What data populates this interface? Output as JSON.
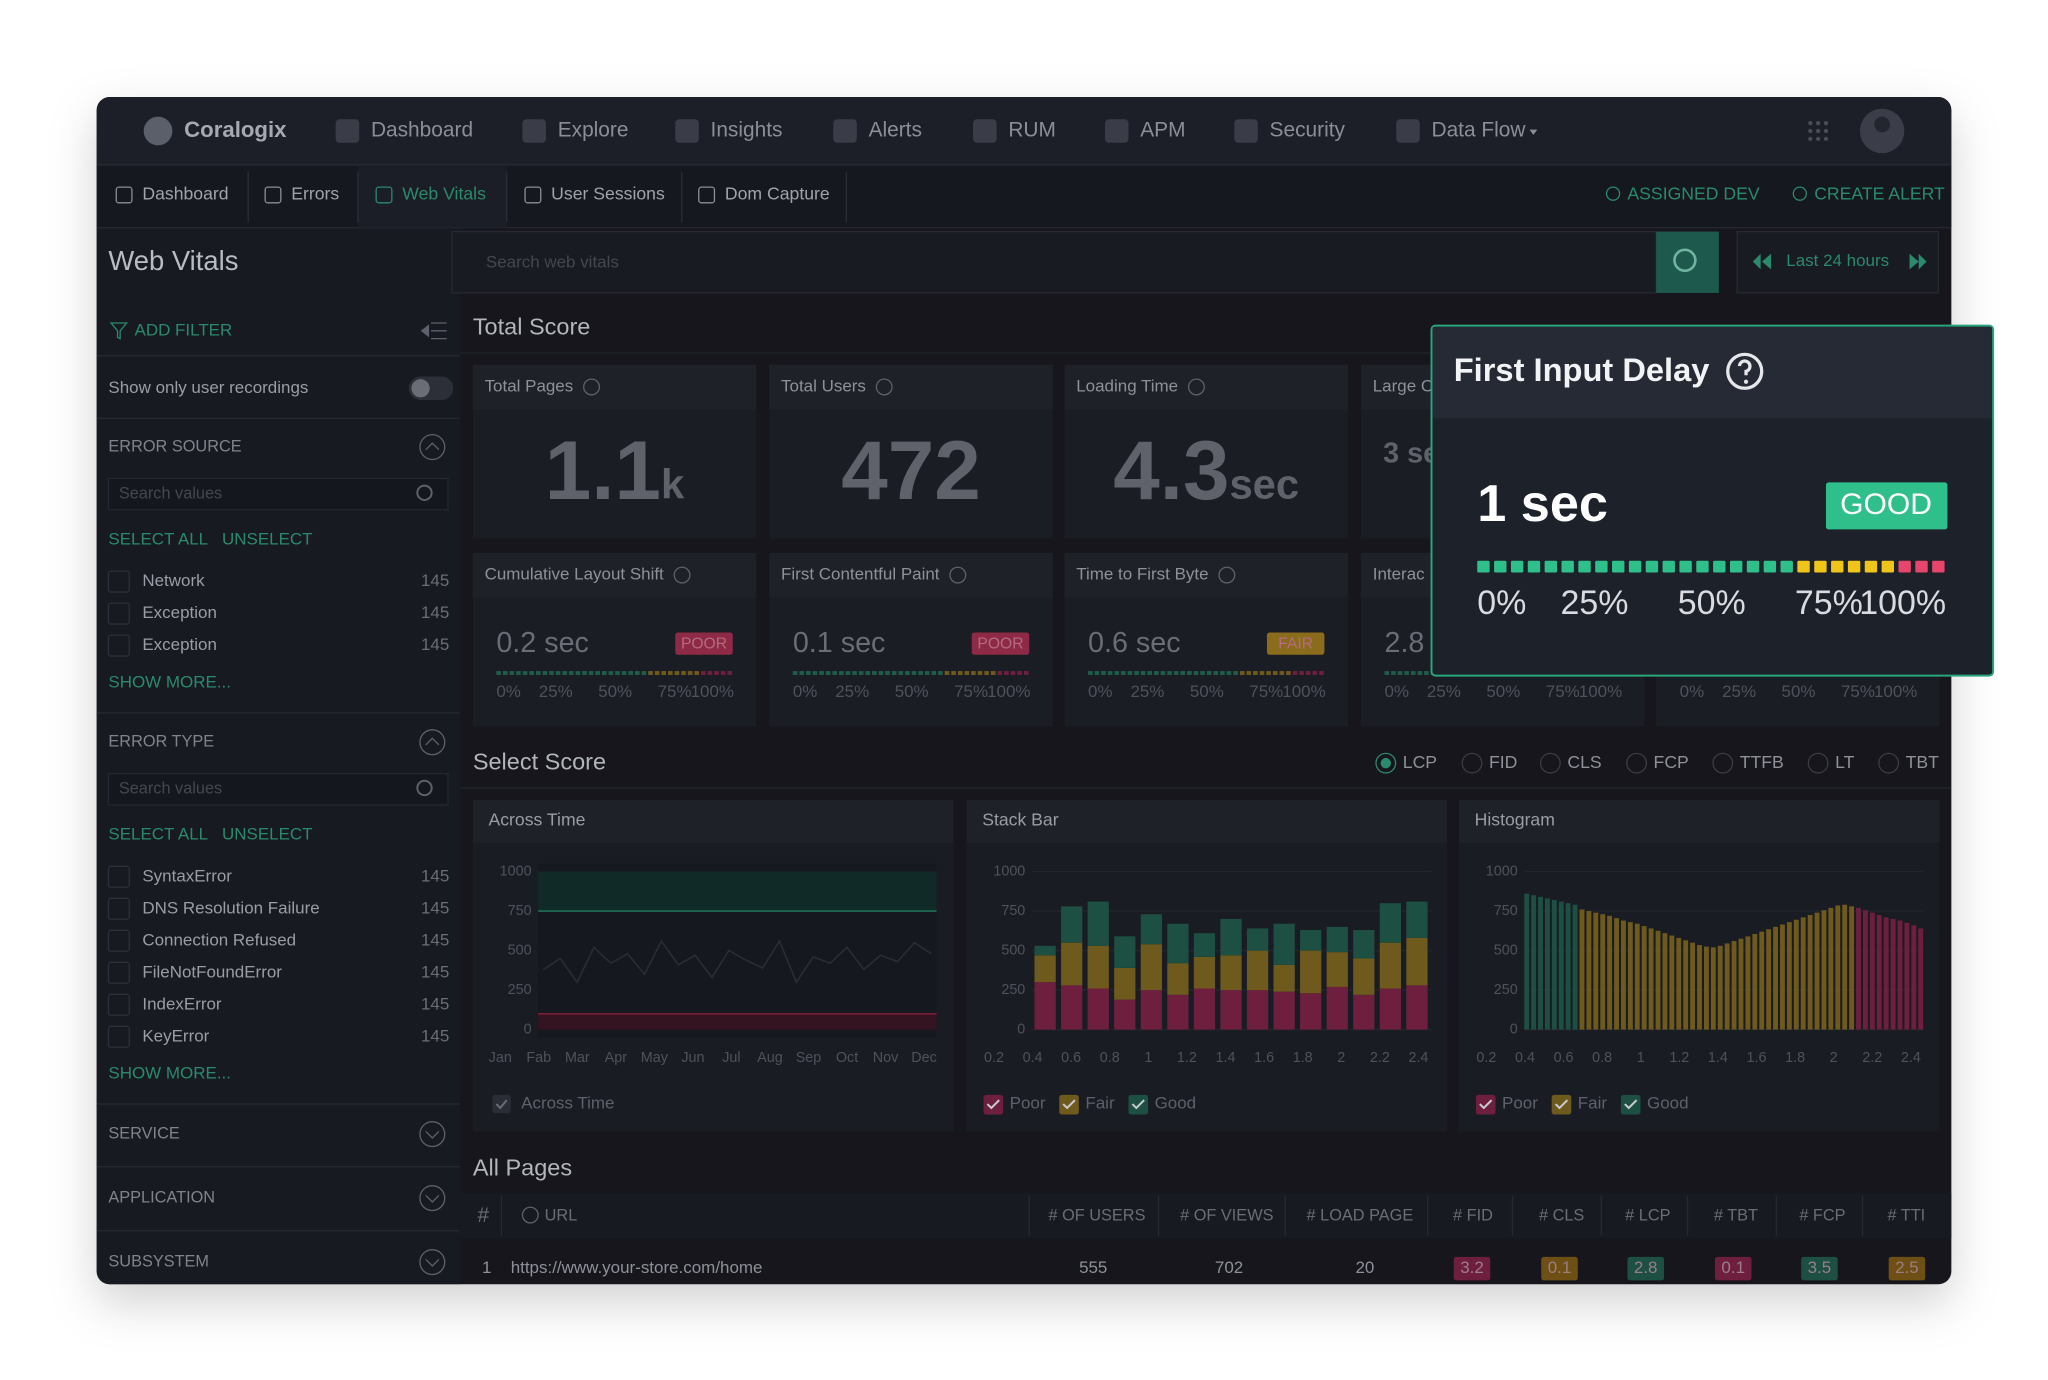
{
  "nav": {
    "brand": "Coralogix",
    "items": [
      "Dashboard",
      "Explore",
      "Insights",
      "Alerts",
      "RUM",
      "APM",
      "Security",
      "Data Flow"
    ]
  },
  "subnav": {
    "tabs": [
      "Dashboard",
      "Errors",
      "Web Vitals",
      "User Sessions",
      "Dom Capture"
    ],
    "active": 2,
    "actions": [
      "ASSIGNED DEV",
      "CREATE ALERT"
    ]
  },
  "page_title": "Web Vitals",
  "search_placeholder": "Search web vitals",
  "time_range": "Last 24 hours",
  "sidebar": {
    "add_filter": "ADD FILTER",
    "recordings_toggle": "Show only user recordings",
    "sections": [
      {
        "title": "ERROR SOURCE",
        "search": "Search values",
        "select_all": "SELECT ALL",
        "unselect": "UNSELECT",
        "items": [
          {
            "label": "Network",
            "count": 145
          },
          {
            "label": "Exception",
            "count": 145
          },
          {
            "label": "Exception",
            "count": 145
          }
        ],
        "show_more": "SHOW MORE..."
      },
      {
        "title": "ERROR TYPE",
        "search": "Search values",
        "select_all": "SELECT ALL",
        "unselect": "UNSELECT",
        "items": [
          {
            "label": "SyntaxError",
            "count": 145
          },
          {
            "label": "DNS Resolution Failure",
            "count": 145
          },
          {
            "label": "Connection Refused",
            "count": 145
          },
          {
            "label": "FileNotFoundError",
            "count": 145
          },
          {
            "label": "IndexError",
            "count": 145
          },
          {
            "label": "KeyError",
            "count": 145
          }
        ],
        "show_more": "SHOW MORE..."
      },
      {
        "title": "SERVICE"
      },
      {
        "title": "APPLICATION"
      },
      {
        "title": "SUBSYSTEM"
      }
    ]
  },
  "total_score": {
    "title": "Total Score",
    "summary_cards": [
      {
        "label": "Total Pages",
        "value": 1.1,
        "unit": "k"
      },
      {
        "label": "Total Users",
        "value": 472
      },
      {
        "label": "Loading Time",
        "value": 4.3,
        "unit": "sec"
      },
      {
        "label": "Large C",
        "value": "3 se"
      }
    ],
    "scale_labels": [
      "0%",
      "25%",
      "50%",
      "75%",
      "100%"
    ],
    "vital_cards": [
      {
        "label": "Cumulative Layout Shift",
        "value": "0.2 sec",
        "status": "POOR",
        "color": "#8e2a45"
      },
      {
        "label": "First Contentful Paint",
        "value": "0.1 sec",
        "status": "POOR",
        "color": "#8e2a45"
      },
      {
        "label": "Time to First Byte",
        "value": "0.6 sec",
        "status": "FAIR",
        "color": "#8a6c1c"
      },
      {
        "label": "Interac",
        "value": 2.8
      }
    ]
  },
  "select_score": {
    "title": "Select Score",
    "options": [
      "LCP",
      "FID",
      "CLS",
      "FCP",
      "TTFB",
      "LT",
      "TBT"
    ],
    "selected": 0
  },
  "charts": {
    "across_time": {
      "type": "line",
      "title": "Across Time",
      "ylim": [
        0,
        1000
      ],
      "yticks": [
        0,
        250,
        500,
        750,
        1000
      ],
      "categories": [
        "Jan",
        "Fab",
        "Mar",
        "Apr",
        "May",
        "Jun",
        "Jul",
        "Aug",
        "Sep",
        "Oct",
        "Nov",
        "Dec"
      ],
      "values": [
        380,
        450,
        300,
        520,
        420,
        480,
        350,
        560,
        410,
        470,
        330,
        500,
        440,
        390,
        560,
        300,
        460,
        420,
        520,
        380,
        470,
        430,
        550,
        480
      ],
      "color": "#2a2d37",
      "bands": [
        {
          "from": 750,
          "to": 1000,
          "color": "#0f2a27",
          "line": "#1f6e55"
        },
        {
          "from": 0,
          "to": 100,
          "color": "#341421",
          "line": "#7a1f3a"
        }
      ],
      "legend": "Across Time"
    },
    "stack_bar": {
      "type": "stacked_bar",
      "title": "Stack Bar",
      "ylim": [
        0,
        1000
      ],
      "yticks": [
        0,
        250,
        500,
        750,
        1000
      ],
      "xlim": [
        0.2,
        2.4
      ],
      "xticks": [
        0.2,
        0.4,
        0.6,
        0.8,
        1,
        1.2,
        1.4,
        1.6,
        1.8,
        2,
        2.2,
        2.4
      ],
      "series": [
        {
          "name": "Poor",
          "color": "#6e1f3e",
          "values": [
            300,
            280,
            260,
            190,
            250,
            220,
            260,
            250,
            250,
            240,
            230,
            270,
            220,
            260,
            280
          ]
        },
        {
          "name": "Fair",
          "color": "#6e5a1c",
          "values": [
            170,
            270,
            270,
            200,
            290,
            200,
            200,
            220,
            250,
            170,
            270,
            220,
            230,
            290,
            300
          ]
        },
        {
          "name": "Good",
          "color": "#1d4f42",
          "values": [
            60,
            230,
            280,
            200,
            190,
            250,
            150,
            230,
            140,
            260,
            130,
            160,
            180,
            250,
            230
          ]
        }
      ]
    },
    "histogram": {
      "type": "histogram",
      "title": "Histogram",
      "ylim": [
        0,
        1000
      ],
      "yticks": [
        0,
        250,
        500,
        750,
        1000
      ],
      "xlim": [
        0.2,
        2.4
      ],
      "xticks": [
        0.2,
        0.4,
        0.6,
        0.8,
        1,
        1.2,
        1.4,
        1.6,
        1.8,
        2,
        2.2,
        2.4
      ],
      "series": [
        {
          "name": "Poor",
          "color": "#6e1f3e",
          "values": [
            770,
            755,
            740,
            725,
            710,
            700,
            690,
            675,
            660,
            640
          ]
        },
        {
          "name": "Fair",
          "color": "#6e5a1c",
          "values": [
            760,
            750,
            740,
            730,
            720,
            705,
            690,
            680,
            670,
            655,
            640,
            625,
            610,
            595,
            580,
            565,
            550,
            535,
            525,
            520,
            530,
            545,
            560,
            575,
            590,
            605,
            620,
            635,
            650,
            665,
            680,
            695,
            710,
            725,
            740,
            755,
            770,
            785,
            790,
            780
          ]
        },
        {
          "name": "Good",
          "color": "#1d4f42",
          "values": [
            860,
            850,
            840,
            830,
            820,
            810,
            800,
            790
          ]
        }
      ]
    }
  },
  "all_pages": {
    "title": "All Pages",
    "columns": [
      "#",
      "URL",
      "# OF USERS",
      "# OF VIEWS",
      "# LOAD PAGE",
      "# FID",
      "# CLS",
      "# LCP",
      "# TBT",
      "# FCP",
      "# TTI"
    ],
    "rows": [
      [
        1,
        "https://www.your-store.com/home",
        555,
        702,
        20,
        3.2,
        0.1,
        2.8,
        0.1,
        3.5,
        2.5
      ]
    ],
    "badge_colors": [
      "#6e1f3e",
      "#6e4f14",
      "#1d4f42",
      "#6e1f3e",
      "#1d4f42",
      "#6e4f14"
    ]
  },
  "tooltip": {
    "title": "First Input Delay",
    "value": "1 sec",
    "status": "GOOD"
  }
}
